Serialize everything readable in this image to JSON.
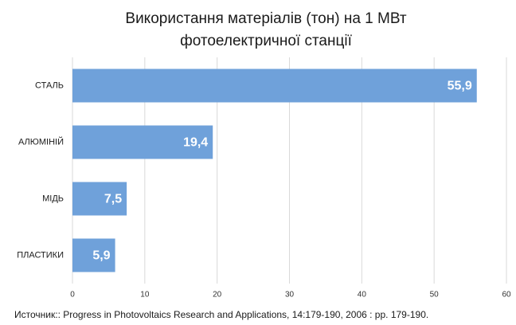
{
  "chart_data": {
    "type": "hbar",
    "title": [
      "Використання матеріалів (тон) на 1 МВт",
      "фотоелектричної станції"
    ],
    "categories": [
      "СТАЛЬ",
      "АЛЮМІНІЙ",
      "МІДЬ",
      "ПЛАСТИКИ"
    ],
    "values": [
      55.9,
      19.4,
      7.5,
      5.9
    ],
    "value_labels": [
      "55,9",
      "19,4",
      "7,5",
      "5,9"
    ],
    "color": "#6fa1da",
    "xlim": [
      0,
      60
    ],
    "xticks": [
      0,
      10,
      20,
      30,
      40,
      50,
      60
    ],
    "grid": true,
    "source": "Источник::  Progress in Photovoltaics Research and Applications, 14:179-190, 2006  : pp. 179-190."
  }
}
